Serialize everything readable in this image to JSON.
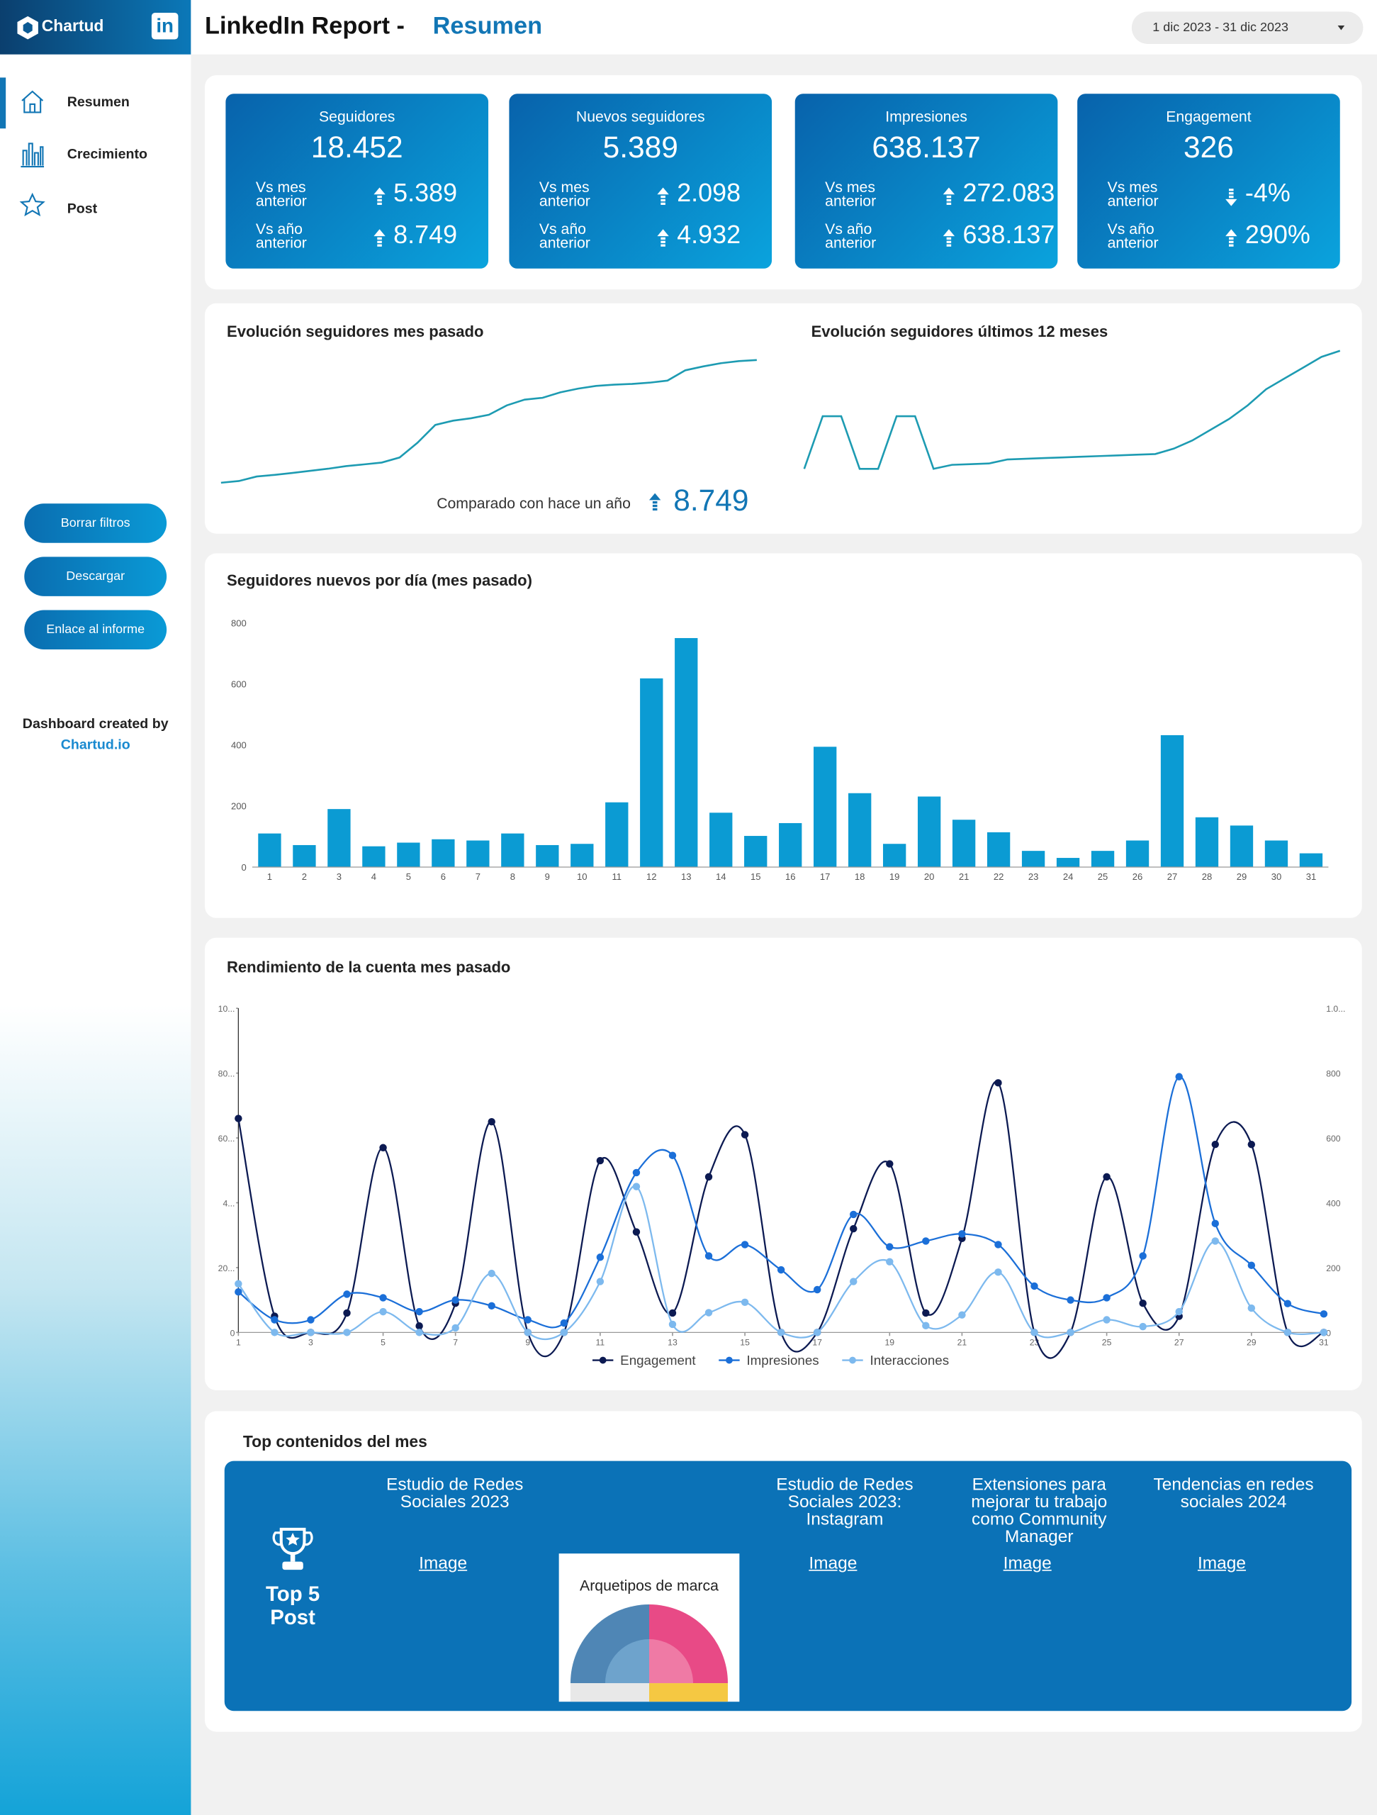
{
  "header": {
    "logo": "Chartud",
    "network_icon": "in",
    "title": "LinkedIn Report -",
    "section": "Resumen",
    "date_range": "1 dic 2023 - 31 dic 2023"
  },
  "sidebar": {
    "nav": [
      "Resumen",
      "Crecimiento",
      "Post"
    ],
    "buttons": [
      "Borrar filtros",
      "Descargar",
      "Enlace al informe"
    ],
    "credit": "Dashboard created by",
    "credit_link": "Chartud.io"
  },
  "kpis": [
    {
      "title": "Seguidores",
      "value": "18.452",
      "comparisons": [
        {
          "label": "Vs mes anterior",
          "value": "5.389",
          "trend": "up"
        },
        {
          "label": "Vs año anterior",
          "value": "8.749",
          "trend": "up"
        }
      ]
    },
    {
      "title": "Nuevos seguidores",
      "value": "5.389",
      "comparisons": [
        {
          "label": "Vs mes anterior",
          "value": "2.098",
          "trend": "up"
        },
        {
          "label": "Vs año anterior",
          "value": "4.932",
          "trend": "up"
        }
      ]
    },
    {
      "title": "Impresiones",
      "value": "638.137",
      "comparisons": [
        {
          "label": "Vs mes anterior",
          "value": "272.083",
          "trend": "up"
        },
        {
          "label": "Vs año anterior",
          "value": "638.137",
          "trend": "up"
        }
      ]
    },
    {
      "title": "Engagement",
      "value": "326",
      "comparisons": [
        {
          "label": "Vs mes anterior",
          "value": "-4%",
          "trend": "down"
        },
        {
          "label": "Vs año anterior",
          "value": "290%",
          "trend": "up"
        }
      ]
    }
  ],
  "chart_data": [
    {
      "type": "sparkline",
      "title": "Evolución seguidores mes pasado",
      "color": "#1d9bb2",
      "values": [
        13304,
        13376,
        13566,
        13634,
        13714,
        13805,
        13892,
        14002,
        14074,
        14150,
        14362,
        14980,
        15730,
        15908,
        16010,
        16154,
        16548,
        16790,
        16866,
        17097,
        17252,
        17366,
        17419,
        17449,
        17502,
        17589,
        18021,
        18184,
        18320,
        18407,
        18452
      ],
      "annotation": "Comparado con hace un año",
      "annotation_value": "8.749",
      "annotation_trend": "up"
    },
    {
      "type": "sparkline",
      "title": "Evolución seguidores últimos 12 meses",
      "color": "#1d9bb2",
      "values": [
        9703,
        13600,
        13600,
        9703,
        9703,
        13600,
        13600,
        9703,
        10000,
        10050,
        10100,
        10400,
        10450,
        10500,
        10550,
        10600,
        10650,
        10700,
        10750,
        10800,
        11200,
        11800,
        12600,
        13400,
        14400,
        15600,
        16400,
        17200,
        18000,
        18452
      ]
    },
    {
      "type": "bar",
      "title": "Seguidores nuevos por día (mes pasado)",
      "color": "#0b9bd3",
      "categories": [
        "1",
        "2",
        "3",
        "4",
        "5",
        "6",
        "7",
        "8",
        "9",
        "10",
        "11",
        "12",
        "13",
        "14",
        "15",
        "16",
        "17",
        "18",
        "19",
        "20",
        "21",
        "22",
        "23",
        "24",
        "25",
        "26",
        "27",
        "28",
        "29",
        "30",
        "31"
      ],
      "values": [
        110,
        72,
        190,
        68,
        80,
        91,
        87,
        110,
        72,
        76,
        212,
        618,
        750,
        178,
        102,
        144,
        394,
        242,
        76,
        231,
        155,
        114,
        53,
        30,
        53,
        87,
        432,
        163,
        136,
        87,
        45
      ],
      "ylim": [
        0,
        800
      ],
      "yticks": [
        0,
        200,
        400,
        600,
        800
      ],
      "grid": false
    },
    {
      "type": "line",
      "title": "Rendimiento de la cuenta mes pasado",
      "legend": "bottom",
      "smooth": true,
      "x": [
        1,
        2,
        3,
        4,
        5,
        6,
        7,
        8,
        9,
        10,
        11,
        12,
        13,
        14,
        15,
        16,
        17,
        18,
        19,
        20,
        21,
        22,
        23,
        24,
        25,
        26,
        27,
        28,
        29,
        30,
        31
      ],
      "xlim": [
        1,
        31
      ],
      "xticks": [
        1,
        3,
        5,
        7,
        9,
        11,
        13,
        15,
        17,
        19,
        21,
        23,
        25,
        27,
        29,
        31
      ],
      "ylim": [
        0,
        100
      ],
      "yticks": [
        0,
        {
          "value": 20,
          "label": "20..."
        },
        {
          "value": 40,
          "label": "4..."
        },
        {
          "value": 60,
          "label": "60..."
        },
        {
          "value": 80,
          "label": "80..."
        },
        {
          "value": 100,
          "label": "10..."
        }
      ],
      "y2lim": [
        0,
        1000
      ],
      "y2ticks": [
        0,
        200,
        400,
        600,
        800,
        {
          "value": 1000,
          "label": "1.0..."
        }
      ],
      "series": [
        {
          "name": "Engagement",
          "color": "#0c1a52",
          "values": [
            66,
            5,
            0,
            6,
            57,
            2,
            9,
            65,
            0,
            0,
            53,
            31,
            6,
            48,
            61,
            0,
            0,
            32,
            52,
            6,
            29,
            77,
            0,
            0,
            48,
            9,
            5,
            58,
            58,
            0,
            0
          ]
        },
        {
          "name": "Impresiones",
          "color": "#1b6fd8",
          "axis": "y2",
          "values": [
            125,
            39,
            39,
            118,
            107,
            64,
            100,
            82,
            39,
            29,
            232,
            493,
            546,
            236,
            271,
            193,
            132,
            364,
            264,
            282,
            304,
            271,
            143,
            100,
            107,
            236,
            789,
            336,
            207,
            89,
            57
          ]
        },
        {
          "name": "Interacciones",
          "color": "#7db9ee",
          "axis": "y2",
          "values": [
            150,
            0,
            0,
            0,
            64,
            0,
            14,
            182,
            0,
            0,
            157,
            450,
            25,
            61,
            93,
            0,
            0,
            157,
            218,
            21,
            54,
            186,
            0,
            0,
            39,
            18,
            64,
            282,
            75,
            0,
            0
          ]
        }
      ]
    }
  ],
  "top_posts": {
    "title": "Top contenidos del mes",
    "badge": "Top 5 Post",
    "posts": [
      {
        "title": "Estudio de Redes Sociales 2023",
        "image": "Image"
      },
      {
        "image_title": "Arquetipos de marca"
      },
      {
        "title": "Estudio de Redes Sociales 2023: Instagram",
        "image": "Image"
      },
      {
        "title": "Extensiones para mejorar tu trabajo como Community Manager",
        "image": "Image"
      },
      {
        "title": "Tendencias en redes sociales 2024",
        "image": "Image"
      }
    ]
  }
}
